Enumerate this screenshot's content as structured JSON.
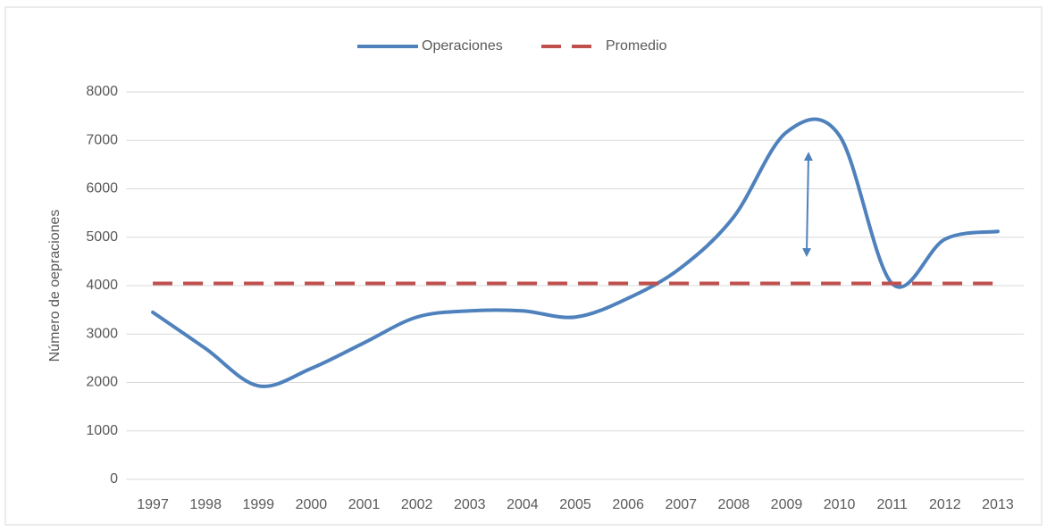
{
  "chart_data": {
    "type": "line",
    "categories": [
      "1997",
      "1998",
      "1999",
      "2000",
      "2001",
      "2002",
      "2003",
      "2004",
      "2005",
      "2006",
      "2007",
      "2008",
      "2009",
      "2010",
      "2011",
      "2012",
      "2013"
    ],
    "series": [
      {
        "name": "Operaciones",
        "color": "#4f81bd",
        "values": [
          3450,
          2700,
          1930,
          2290,
          2820,
          3350,
          3480,
          3480,
          3350,
          3740,
          4370,
          5420,
          7170,
          7100,
          4040,
          4960,
          5120
        ]
      },
      {
        "name": "Promedio",
        "color": "#c0504d",
        "dashed": true,
        "values": [
          4045,
          4045,
          4045,
          4045,
          4045,
          4045,
          4045,
          4045,
          4045,
          4045,
          4045,
          4045,
          4045,
          4045,
          4045,
          4045,
          4045
        ]
      }
    ],
    "y_label": "Número de oepraciones",
    "ylim": [
      0,
      8000
    ],
    "yticks": [
      0,
      1000,
      2000,
      3000,
      4000,
      5000,
      6000,
      7000,
      8000
    ],
    "grid": true,
    "legend": "top"
  }
}
